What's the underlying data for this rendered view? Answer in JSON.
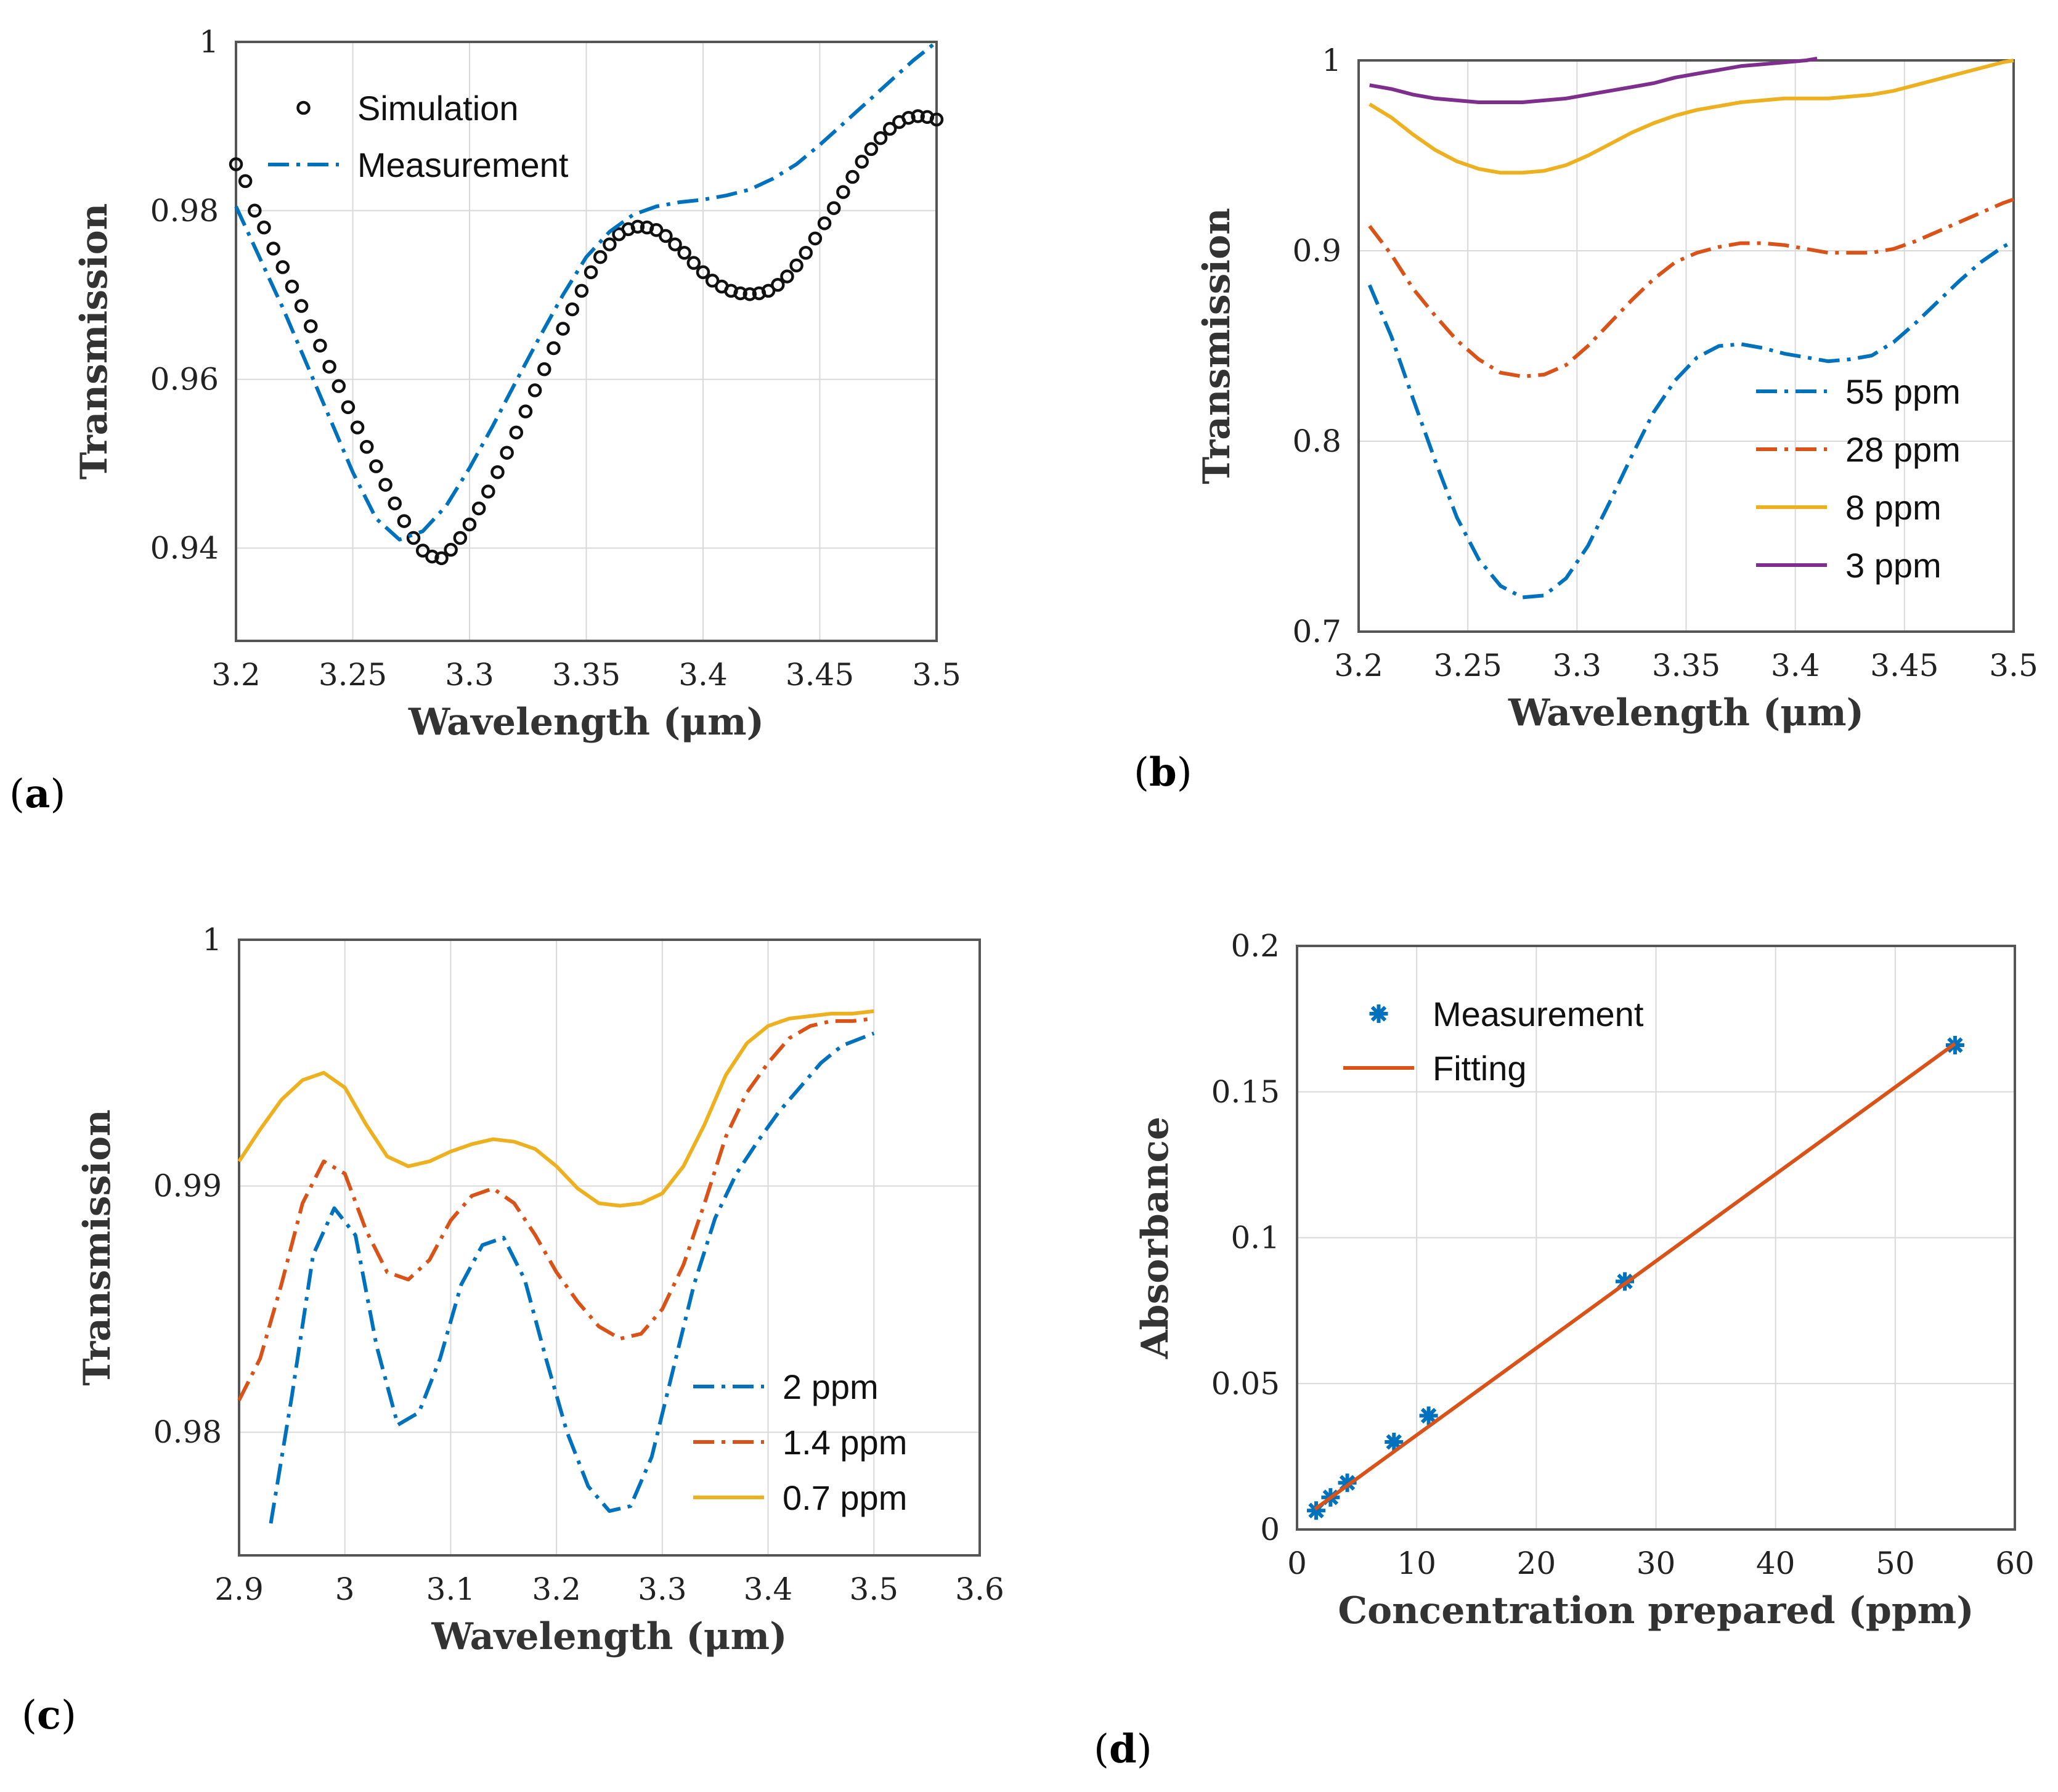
{
  "chart_data": [
    {
      "id": "a",
      "panel_label": "a",
      "type": "line",
      "xlabel": "Wavelength (μm)",
      "ylabel": "Transmission",
      "xlim": [
        3.2,
        3.5
      ],
      "ylim": [
        0.929,
        1.0
      ],
      "xticks": [
        3.2,
        3.25,
        3.3,
        3.35,
        3.4,
        3.45,
        3.5
      ],
      "xtick_labels": [
        "3.2",
        "3.25",
        "3.3",
        "3.35",
        "3.4",
        "3.45",
        "3.5"
      ],
      "yticks": [
        0.94,
        0.96,
        0.98,
        1.0
      ],
      "ytick_labels": [
        "0.94",
        "0.96",
        "0.98",
        "1"
      ],
      "legend_position": "top-left",
      "series": [
        {
          "name": "Simulation",
          "style": "circle-markers",
          "color": "#111111",
          "x": [
            3.2,
            3.204,
            3.208,
            3.212,
            3.216,
            3.22,
            3.224,
            3.228,
            3.232,
            3.236,
            3.24,
            3.244,
            3.248,
            3.252,
            3.256,
            3.26,
            3.264,
            3.268,
            3.272,
            3.276,
            3.28,
            3.284,
            3.288,
            3.292,
            3.296,
            3.3,
            3.304,
            3.308,
            3.312,
            3.316,
            3.32,
            3.324,
            3.328,
            3.332,
            3.336,
            3.34,
            3.344,
            3.348,
            3.352,
            3.356,
            3.36,
            3.364,
            3.368,
            3.372,
            3.376,
            3.38,
            3.384,
            3.388,
            3.392,
            3.396,
            3.4,
            3.404,
            3.408,
            3.412,
            3.416,
            3.42,
            3.424,
            3.428,
            3.432,
            3.436,
            3.44,
            3.444,
            3.448,
            3.452,
            3.456,
            3.46,
            3.464,
            3.468,
            3.472,
            3.476,
            3.48,
            3.484,
            3.488,
            3.492,
            3.496,
            3.5
          ],
          "values": [
            0.9855,
            0.9835,
            0.98,
            0.978,
            0.9755,
            0.9733,
            0.971,
            0.9687,
            0.9663,
            0.964,
            0.9615,
            0.9592,
            0.9567,
            0.9543,
            0.952,
            0.9497,
            0.9475,
            0.9453,
            0.9432,
            0.9412,
            0.9397,
            0.939,
            0.9388,
            0.9398,
            0.9412,
            0.9428,
            0.9447,
            0.9467,
            0.949,
            0.9513,
            0.9537,
            0.9562,
            0.9587,
            0.9612,
            0.9637,
            0.966,
            0.9683,
            0.9705,
            0.9727,
            0.9745,
            0.976,
            0.9772,
            0.9778,
            0.9781,
            0.978,
            0.9777,
            0.977,
            0.976,
            0.975,
            0.9738,
            0.9727,
            0.9717,
            0.971,
            0.9705,
            0.9702,
            0.9701,
            0.9702,
            0.9705,
            0.9712,
            0.9722,
            0.9735,
            0.975,
            0.9767,
            0.9785,
            0.9803,
            0.9822,
            0.984,
            0.9858,
            0.9873,
            0.9886,
            0.9897,
            0.9905,
            0.991,
            0.9912,
            0.9911,
            0.9908
          ]
        },
        {
          "name": "Measurement",
          "style": "dash-dot",
          "color": "#0072bd",
          "x": [
            3.2,
            3.21,
            3.22,
            3.23,
            3.24,
            3.25,
            3.26,
            3.27,
            3.28,
            3.29,
            3.3,
            3.31,
            3.32,
            3.33,
            3.34,
            3.35,
            3.36,
            3.37,
            3.38,
            3.39,
            3.4,
            3.41,
            3.42,
            3.43,
            3.44,
            3.45,
            3.46,
            3.47,
            3.48,
            3.49,
            3.5
          ],
          "values": [
            0.9805,
            0.9745,
            0.9685,
            0.962,
            0.9555,
            0.949,
            0.9435,
            0.941,
            0.942,
            0.945,
            0.9495,
            0.9545,
            0.9598,
            0.965,
            0.97,
            0.9745,
            0.9775,
            0.9795,
            0.9805,
            0.981,
            0.9813,
            0.9818,
            0.9825,
            0.9838,
            0.9855,
            0.9878,
            0.9903,
            0.9928,
            0.9953,
            0.9978,
            1.0
          ]
        }
      ]
    },
    {
      "id": "b",
      "panel_label": "b",
      "type": "line",
      "xlabel": "Wavelength (μm)",
      "ylabel": "Transmission",
      "xlim": [
        3.2,
        3.5
      ],
      "ylim": [
        0.7,
        1.0
      ],
      "xticks": [
        3.2,
        3.25,
        3.3,
        3.35,
        3.4,
        3.45,
        3.5
      ],
      "xtick_labels": [
        "3.2",
        "3.25",
        "3.3",
        "3.35",
        "3.4",
        "3.45",
        "3.5"
      ],
      "yticks": [
        0.7,
        0.8,
        0.9,
        1.0
      ],
      "ytick_labels": [
        "0.7",
        "0.8",
        "0.9",
        "1"
      ],
      "legend_position": "bottom-right",
      "series": [
        {
          "name": "55 ppm",
          "style": "dash-dot",
          "color": "#0072bd",
          "x": [
            3.205,
            3.215,
            3.225,
            3.235,
            3.245,
            3.255,
            3.265,
            3.275,
            3.285,
            3.295,
            3.305,
            3.315,
            3.325,
            3.335,
            3.345,
            3.355,
            3.365,
            3.375,
            3.385,
            3.395,
            3.405,
            3.415,
            3.425,
            3.435,
            3.445,
            3.455,
            3.465,
            3.475,
            3.485,
            3.495,
            3.5
          ],
          "values": [
            0.882,
            0.855,
            0.822,
            0.79,
            0.76,
            0.738,
            0.724,
            0.718,
            0.719,
            0.728,
            0.745,
            0.768,
            0.792,
            0.815,
            0.832,
            0.844,
            0.85,
            0.851,
            0.849,
            0.846,
            0.844,
            0.842,
            0.843,
            0.845,
            0.852,
            0.862,
            0.873,
            0.884,
            0.894,
            0.902,
            0.905
          ]
        },
        {
          "name": "28 ppm",
          "style": "dash-dot",
          "color": "#d95319",
          "x": [
            3.205,
            3.215,
            3.225,
            3.235,
            3.245,
            3.255,
            3.265,
            3.275,
            3.285,
            3.295,
            3.305,
            3.315,
            3.325,
            3.335,
            3.345,
            3.355,
            3.365,
            3.375,
            3.385,
            3.395,
            3.405,
            3.415,
            3.425,
            3.435,
            3.445,
            3.455,
            3.465,
            3.475,
            3.485,
            3.495,
            3.5
          ],
          "values": [
            0.913,
            0.898,
            0.88,
            0.866,
            0.853,
            0.843,
            0.836,
            0.834,
            0.835,
            0.84,
            0.85,
            0.862,
            0.874,
            0.885,
            0.894,
            0.899,
            0.902,
            0.904,
            0.904,
            0.903,
            0.901,
            0.899,
            0.899,
            0.899,
            0.901,
            0.905,
            0.91,
            0.915,
            0.92,
            0.925,
            0.927
          ]
        },
        {
          "name": "8 ppm",
          "style": "solid",
          "color": "#edb120",
          "x": [
            3.205,
            3.215,
            3.225,
            3.235,
            3.245,
            3.255,
            3.265,
            3.275,
            3.285,
            3.295,
            3.305,
            3.315,
            3.325,
            3.335,
            3.345,
            3.355,
            3.365,
            3.375,
            3.385,
            3.395,
            3.405,
            3.415,
            3.425,
            3.435,
            3.445,
            3.455,
            3.465,
            3.475,
            3.485,
            3.495,
            3.5
          ],
          "values": [
            0.977,
            0.97,
            0.961,
            0.953,
            0.947,
            0.943,
            0.941,
            0.941,
            0.942,
            0.945,
            0.95,
            0.956,
            0.962,
            0.967,
            0.971,
            0.974,
            0.976,
            0.978,
            0.979,
            0.98,
            0.98,
            0.98,
            0.981,
            0.982,
            0.984,
            0.987,
            0.99,
            0.993,
            0.996,
            0.999,
            1.0
          ]
        },
        {
          "name": "3 ppm",
          "style": "solid",
          "color": "#7e2f8e",
          "x": [
            3.205,
            3.215,
            3.225,
            3.235,
            3.245,
            3.255,
            3.265,
            3.275,
            3.285,
            3.295,
            3.305,
            3.315,
            3.325,
            3.335,
            3.345,
            3.355,
            3.365,
            3.375,
            3.385,
            3.395,
            3.405,
            3.41
          ],
          "values": [
            0.987,
            0.985,
            0.982,
            0.98,
            0.979,
            0.978,
            0.978,
            0.978,
            0.979,
            0.98,
            0.982,
            0.984,
            0.986,
            0.988,
            0.991,
            0.993,
            0.995,
            0.997,
            0.998,
            0.999,
            1.0,
            1.001
          ]
        }
      ]
    },
    {
      "id": "c",
      "panel_label": "c",
      "type": "line",
      "xlabel": "Wavelength (μm)",
      "ylabel": "Transmission",
      "xlim": [
        2.9,
        3.6
      ],
      "ylim": [
        0.975,
        1.0
      ],
      "xticks": [
        2.9,
        3.0,
        3.1,
        3.2,
        3.3,
        3.4,
        3.5,
        3.6
      ],
      "xtick_labels": [
        "2.9",
        "3",
        "3.1",
        "3.2",
        "3.3",
        "3.4",
        "3.5",
        "3.6"
      ],
      "yticks": [
        0.98,
        0.99,
        1.0
      ],
      "ytick_labels": [
        "0.98",
        "0.99",
        "1"
      ],
      "legend_position": "bottom-right",
      "series": [
        {
          "name": "2 ppm",
          "style": "dash-dot",
          "color": "#0072bd",
          "x": [
            2.93,
            2.95,
            2.97,
            2.99,
            3.01,
            3.03,
            3.05,
            3.07,
            3.09,
            3.11,
            3.13,
            3.15,
            3.17,
            3.19,
            3.21,
            3.23,
            3.25,
            3.27,
            3.29,
            3.31,
            3.33,
            3.35,
            3.37,
            3.39,
            3.41,
            3.43,
            3.45,
            3.47,
            3.5
          ],
          "values": [
            0.9763,
            0.9815,
            0.9872,
            0.9891,
            0.988,
            0.9835,
            0.9803,
            0.9808,
            0.983,
            0.986,
            0.9876,
            0.9879,
            0.9862,
            0.983,
            0.98,
            0.9778,
            0.9768,
            0.977,
            0.979,
            0.9825,
            0.986,
            0.9887,
            0.9905,
            0.9918,
            0.993,
            0.994,
            0.995,
            0.9957,
            0.9962
          ]
        },
        {
          "name": "1.4 ppm",
          "style": "dash-dot",
          "color": "#d95319",
          "x": [
            2.9,
            2.92,
            2.94,
            2.96,
            2.98,
            3.0,
            3.02,
            3.04,
            3.06,
            3.08,
            3.1,
            3.12,
            3.14,
            3.16,
            3.18,
            3.2,
            3.22,
            3.24,
            3.26,
            3.28,
            3.3,
            3.32,
            3.34,
            3.36,
            3.38,
            3.4,
            3.42,
            3.44,
            3.46,
            3.48,
            3.5
          ],
          "values": [
            0.9813,
            0.983,
            0.986,
            0.9893,
            0.991,
            0.9905,
            0.9882,
            0.9865,
            0.9862,
            0.987,
            0.9886,
            0.9896,
            0.9899,
            0.9893,
            0.988,
            0.9865,
            0.9853,
            0.9843,
            0.9838,
            0.984,
            0.985,
            0.9868,
            0.9893,
            0.992,
            0.9938,
            0.995,
            0.996,
            0.9965,
            0.9967,
            0.9967,
            0.9968
          ]
        },
        {
          "name": "0.7 ppm",
          "style": "solid",
          "color": "#edb120",
          "x": [
            2.9,
            2.92,
            2.94,
            2.96,
            2.98,
            3.0,
            3.02,
            3.04,
            3.06,
            3.08,
            3.1,
            3.12,
            3.14,
            3.16,
            3.18,
            3.2,
            3.22,
            3.24,
            3.26,
            3.28,
            3.3,
            3.32,
            3.34,
            3.36,
            3.38,
            3.4,
            3.42,
            3.44,
            3.46,
            3.48,
            3.5
          ],
          "values": [
            0.991,
            0.9923,
            0.9935,
            0.9943,
            0.9946,
            0.994,
            0.9925,
            0.9912,
            0.9908,
            0.991,
            0.9914,
            0.9917,
            0.9919,
            0.9918,
            0.9915,
            0.9908,
            0.9899,
            0.9893,
            0.9892,
            0.9893,
            0.9897,
            0.9908,
            0.9925,
            0.9945,
            0.9958,
            0.9965,
            0.9968,
            0.9969,
            0.997,
            0.997,
            0.9971
          ]
        }
      ]
    },
    {
      "id": "d",
      "panel_label": "d",
      "type": "scatter",
      "xlabel": "Concentration prepared (ppm)",
      "ylabel": "Absorbance",
      "xlim": [
        0,
        60
      ],
      "ylim": [
        0,
        0.2
      ],
      "xticks": [
        0,
        10,
        20,
        30,
        40,
        50,
        60
      ],
      "xtick_labels": [
        "0",
        "10",
        "20",
        "30",
        "40",
        "50",
        "60"
      ],
      "yticks": [
        0,
        0.05,
        0.1,
        0.15,
        0.2
      ],
      "ytick_labels": [
        "0",
        "0.05",
        "0.1",
        "0.15",
        "0.2"
      ],
      "legend_position": "top-left",
      "series": [
        {
          "name": "Measurement",
          "style": "star-markers",
          "color": "#0072bd",
          "x": [
            1.6,
            2.8,
            4.2,
            8.1,
            11.0,
            27.4,
            55.0
          ],
          "values": [
            0.0065,
            0.011,
            0.016,
            0.03,
            0.039,
            0.085,
            0.166
          ]
        },
        {
          "name": "Fitting",
          "style": "solid",
          "color": "#d95319",
          "x": [
            1.5,
            55.0
          ],
          "values": [
            0.007,
            0.1665
          ]
        }
      ]
    }
  ]
}
